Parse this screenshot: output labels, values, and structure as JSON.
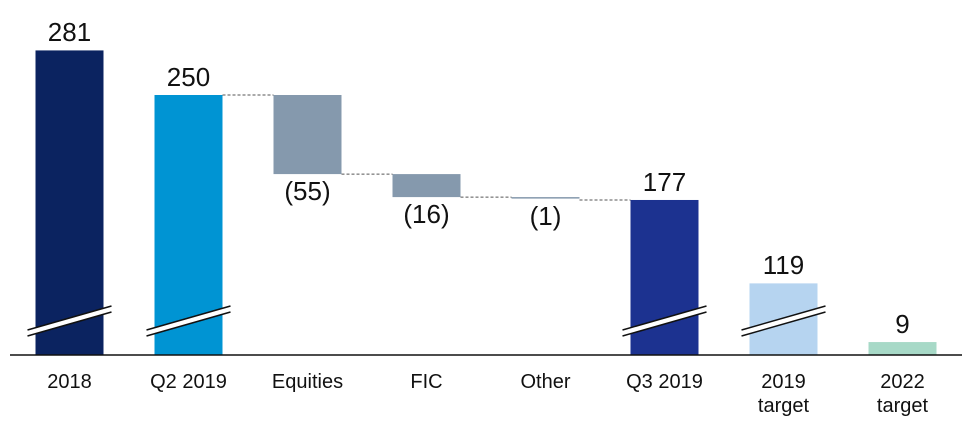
{
  "chart_data": {
    "type": "waterfall",
    "categories": [
      "2018",
      "Q2 2019",
      "Equities",
      "FIC",
      "Other",
      "Q3 2019",
      "2019\ntarget",
      "2022\ntarget"
    ],
    "values": [
      281,
      250,
      -55,
      -16,
      -1,
      177,
      119,
      9
    ],
    "value_labels": [
      "281",
      "250",
      "(55)",
      "(16)",
      "(1)",
      "177",
      "119",
      "9"
    ],
    "colors": [
      "#0b2360",
      "#0094d3",
      "#8599ad",
      "#8599ad",
      "#8599ad",
      "#1c3290",
      "#b6d4f0",
      "#a7d9c7"
    ],
    "axis_break": true
  }
}
